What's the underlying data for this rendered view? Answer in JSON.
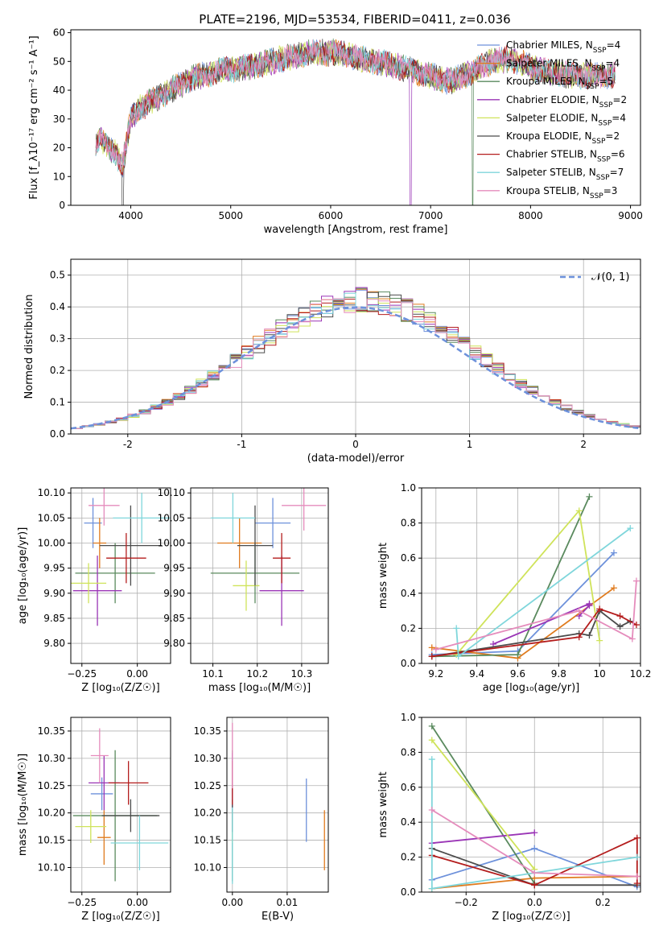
{
  "figure_title": "PLATE=2196, MJD=53534, FIBERID=0411, z=0.036",
  "colors": [
    "#6d91db",
    "#e07b1e",
    "#5a8a5e",
    "#9a35b6",
    "#cfe35a",
    "#4b4b4b",
    "#b41d1d",
    "#7fd6db",
    "#e58cbc"
  ],
  "chart_data": [
    {
      "id": "spectrum",
      "type": "line",
      "xlabel": "wavelength [Angstrom, rest frame]",
      "ylabel": "Flux [f_λ10⁻¹⁷ erg cm⁻² s⁻¹ A⁻¹]",
      "xlim": [
        3400,
        9100
      ],
      "ylim": [
        0,
        61
      ],
      "xticks": [
        4000,
        5000,
        6000,
        7000,
        8000,
        9000
      ],
      "yticks": [
        0,
        10,
        20,
        30,
        40,
        50,
        60
      ],
      "grid": false,
      "legend": "upper-right",
      "continuum_x": [
        3650,
        3700,
        3850,
        3920,
        3950,
        4000,
        4100,
        4300,
        4600,
        4900,
        5200,
        5400,
        5800,
        6100,
        6300,
        6600,
        6900,
        7200,
        7400,
        7600,
        7800,
        8000,
        8200,
        8500,
        8850
      ],
      "continuum_y": [
        22,
        23,
        18,
        14,
        20,
        30,
        34,
        38,
        44,
        47,
        48,
        50,
        53,
        53,
        51,
        49,
        46,
        43,
        46,
        50,
        51,
        48,
        46,
        45,
        45
      ],
      "series": [
        {
          "name": "Chabrier MILES, N_SSP=4",
          "label_main": "Chabrier MILES, N",
          "label_sub": "SSP",
          "label_end": "=4",
          "dip": null
        },
        {
          "name": "Salpeter MILES, N_SSP=4",
          "label_main": "Salpeter MILES, N",
          "label_sub": "SSP",
          "label_end": "=4",
          "dip": null
        },
        {
          "name": "Kroupa MILES, N_SSP=5",
          "label_main": "Kroupa MILES, N",
          "label_sub": "SSP",
          "label_end": "=5",
          "dip": 7420
        },
        {
          "name": "Chabrier ELODIE, N_SSP=2",
          "label_main": "Chabrier ELODIE, N",
          "label_sub": "SSP",
          "label_end": "=2",
          "dip": 6800
        },
        {
          "name": "Salpeter ELODIE, N_SSP=4",
          "label_main": "Salpeter ELODIE, N",
          "label_sub": "SSP",
          "label_end": "=4",
          "dip": null
        },
        {
          "name": "Kroupa ELODIE, N_SSP=2",
          "label_main": "Kroupa ELODIE, N",
          "label_sub": "SSP",
          "label_end": "=2",
          "dip": 3920
        },
        {
          "name": "Chabrier STELIB, N_SSP=6",
          "label_main": "Chabrier STELIB, N",
          "label_sub": "SSP",
          "label_end": "=6",
          "dip": null
        },
        {
          "name": "Salpeter STELIB, N_SSP=7",
          "label_main": "Salpeter STELIB, N",
          "label_sub": "SSP",
          "label_end": "=7",
          "dip": null
        },
        {
          "name": "Kroupa STELIB, N_SSP=3",
          "label_main": "Kroupa STELIB, N",
          "label_sub": "SSP",
          "label_end": "=3",
          "dip": null
        }
      ]
    },
    {
      "id": "residuals",
      "type": "histogram",
      "xlabel": "(data-model)/error",
      "ylabel": "Normed distribution",
      "xlim": [
        -2.5,
        2.5
      ],
      "ylim": [
        0,
        0.55
      ],
      "xticks": [
        -2,
        -1,
        0,
        1,
        2
      ],
      "yticks": [
        0.0,
        0.1,
        0.2,
        0.3,
        0.4,
        0.5
      ],
      "grid": true,
      "legend": "upper-right",
      "normal_label": "𝒩(0, 1)",
      "bin_width": 0.1,
      "hist_note": "per-series step histograms approximate the N(0,1) curve"
    },
    {
      "id": "age-vs-Z",
      "type": "errorbar",
      "xlabel": "Z [log₁₀(Z/Z☉)]",
      "ylabel": "age  [log₁₀(age/yr)]",
      "xlim": [
        -0.3,
        0.15
      ],
      "ylim": [
        9.76,
        10.11
      ],
      "xticks": [
        -0.25,
        0.0
      ],
      "xtick_labels": [
        "−0.25",
        "0.00"
      ],
      "yticks": [
        9.8,
        9.85,
        9.9,
        9.95,
        10.0,
        10.05,
        10.1
      ],
      "grid": true,
      "points": [
        {
          "x": -0.2,
          "y": 10.04,
          "xerr": 0.04,
          "yerr": 0.05,
          "c": 0
        },
        {
          "x": -0.17,
          "y": 10.0,
          "xerr": 0.03,
          "yerr": 0.05,
          "c": 1
        },
        {
          "x": -0.1,
          "y": 9.94,
          "xerr": 0.18,
          "yerr": 0.06,
          "c": 2
        },
        {
          "x": -0.18,
          "y": 9.905,
          "xerr": 0.11,
          "yerr": 0.07,
          "c": 3
        },
        {
          "x": -0.22,
          "y": 9.92,
          "xerr": 0.08,
          "yerr": 0.04,
          "c": 4
        },
        {
          "x": -0.03,
          "y": 9.995,
          "xerr": 0.14,
          "yerr": 0.08,
          "c": 5
        },
        {
          "x": -0.05,
          "y": 9.97,
          "xerr": 0.09,
          "yerr": 0.05,
          "c": 6
        },
        {
          "x": 0.02,
          "y": 10.05,
          "xerr": 0.13,
          "yerr": 0.05,
          "c": 7
        },
        {
          "x": -0.15,
          "y": 10.075,
          "xerr": 0.07,
          "yerr": 0.04,
          "c": 8
        }
      ]
    },
    {
      "id": "age-vs-mass",
      "type": "errorbar",
      "xlabel": "mass [log₁₀(M/M☉)]",
      "ylabel": "",
      "xlim": [
        10.05,
        10.36
      ],
      "ylim": [
        9.76,
        10.11
      ],
      "xticks": [
        10.1,
        10.2,
        10.3
      ],
      "yticks": [
        9.8,
        9.85,
        9.9,
        9.95,
        10.0,
        10.05,
        10.1
      ],
      "grid": true,
      "points": [
        {
          "x": 10.235,
          "y": 10.04,
          "xerr": 0.04,
          "yerr": 0.05,
          "c": 0
        },
        {
          "x": 10.16,
          "y": 10.0,
          "xerr": 0.05,
          "yerr": 0.05,
          "c": 1
        },
        {
          "x": 10.195,
          "y": 9.94,
          "xerr": 0.1,
          "yerr": 0.06,
          "c": 2
        },
        {
          "x": 10.255,
          "y": 9.905,
          "xerr": 0.05,
          "yerr": 0.07,
          "c": 3
        },
        {
          "x": 10.175,
          "y": 9.915,
          "xerr": 0.03,
          "yerr": 0.05,
          "c": 4
        },
        {
          "x": 10.195,
          "y": 9.995,
          "xerr": 0.04,
          "yerr": 0.08,
          "c": 5
        },
        {
          "x": 10.255,
          "y": 9.97,
          "xerr": 0.02,
          "yerr": 0.05,
          "c": 6
        },
        {
          "x": 10.145,
          "y": 10.05,
          "xerr": 0.05,
          "yerr": 0.05,
          "c": 7
        },
        {
          "x": 10.305,
          "y": 10.075,
          "xerr": 0.05,
          "yerr": 0.05,
          "c": 8
        }
      ]
    },
    {
      "id": "weight-vs-age",
      "type": "line",
      "xlabel": "age  [log₁₀(age/yr)]",
      "ylabel": "mass weight",
      "xlim": [
        9.13,
        10.2
      ],
      "ylim": [
        0,
        1.0
      ],
      "xticks": [
        9.2,
        9.4,
        9.6,
        9.8,
        10.0,
        10.2
      ],
      "yticks": [
        0.0,
        0.2,
        0.4,
        0.6,
        0.8,
        1.0
      ],
      "grid": true,
      "series": [
        {
          "c": 0,
          "x": [
            9.18,
            9.6,
            10.07
          ],
          "y": [
            0.05,
            0.07,
            0.63
          ]
        },
        {
          "c": 1,
          "x": [
            9.18,
            9.6,
            10.07
          ],
          "y": [
            0.09,
            0.03,
            0.43
          ]
        },
        {
          "c": 2,
          "x": [
            9.18,
            9.6,
            9.95
          ],
          "y": [
            0.04,
            0.05,
            0.95
          ]
        },
        {
          "c": 3,
          "x": [
            9.48,
            9.95,
            9.95,
            9.9
          ],
          "y": [
            0.11,
            0.34,
            0.33,
            0.27
          ]
        },
        {
          "c": 4,
          "x": [
            9.3,
            9.9,
            10.0
          ],
          "y": [
            0.05,
            0.87,
            0.13
          ]
        },
        {
          "c": 5,
          "x": [
            9.18,
            9.9,
            9.95,
            10.0,
            10.1,
            10.15
          ],
          "y": [
            0.04,
            0.17,
            0.16,
            0.3,
            0.21,
            0.24
          ]
        },
        {
          "c": 6,
          "x": [
            9.18,
            9.9,
            10.0,
            10.1,
            10.18
          ],
          "y": [
            0.04,
            0.15,
            0.31,
            0.27,
            0.22
          ]
        },
        {
          "c": 7,
          "x": [
            9.3,
            9.31,
            10.15
          ],
          "y": [
            0.2,
            0.04,
            0.77
          ]
        },
        {
          "c": 8,
          "x": [
            9.2,
            9.9,
            10.16,
            10.18
          ],
          "y": [
            0.08,
            0.3,
            0.14,
            0.47
          ]
        }
      ]
    },
    {
      "id": "mass-vs-Z",
      "type": "errorbar",
      "xlabel": "Z [log₁₀(Z/Z☉)]",
      "ylabel": "mass [log₁₀(M/M☉)]",
      "xlim": [
        -0.3,
        0.15
      ],
      "ylim": [
        10.055,
        10.375
      ],
      "xticks": [
        -0.25,
        0.0
      ],
      "xtick_labels": [
        "−0.25",
        "0.00"
      ],
      "yticks": [
        10.1,
        10.15,
        10.2,
        10.25,
        10.3,
        10.35
      ],
      "grid": true,
      "points": [
        {
          "x": -0.16,
          "y": 10.235,
          "xerr": 0.05,
          "yerr": 0.03,
          "c": 0
        },
        {
          "x": -0.15,
          "y": 10.155,
          "xerr": 0.03,
          "yerr": 0.05,
          "c": 1
        },
        {
          "x": -0.1,
          "y": 10.195,
          "xerr": 0.19,
          "yerr": 0.12,
          "c": 2
        },
        {
          "x": -0.15,
          "y": 10.255,
          "xerr": 0.07,
          "yerr": 0.05,
          "c": 3
        },
        {
          "x": -0.21,
          "y": 10.175,
          "xerr": 0.07,
          "yerr": 0.03,
          "c": 4
        },
        {
          "x": -0.03,
          "y": 10.195,
          "xerr": 0.13,
          "yerr": 0.03,
          "c": 5
        },
        {
          "x": -0.04,
          "y": 10.255,
          "xerr": 0.09,
          "yerr": 0.04,
          "c": 6
        },
        {
          "x": 0.01,
          "y": 10.145,
          "xerr": 0.13,
          "yerr": 0.05,
          "c": 7
        },
        {
          "x": -0.17,
          "y": 10.305,
          "xerr": 0.04,
          "yerr": 0.05,
          "c": 8
        }
      ]
    },
    {
      "id": "mass-vs-EBV",
      "type": "errorbar",
      "xlabel": "E(B-V)",
      "ylabel": "",
      "xlim": [
        -0.001,
        0.0175
      ],
      "ylim": [
        10.055,
        10.375
      ],
      "xticks": [
        0.0,
        0.01
      ],
      "xtick_labels": [
        "0.00",
        "0.01"
      ],
      "yticks": [
        10.1,
        10.15,
        10.2,
        10.25,
        10.3,
        10.35
      ],
      "grid": true,
      "points": [
        {
          "x": 0.0135,
          "y": 10.205,
          "xerr": 0,
          "yerr": 0.058,
          "c": 0
        },
        {
          "x": 0.0168,
          "y": 10.15,
          "xerr": 0,
          "yerr": 0.055,
          "c": 1
        },
        {
          "x": 0.0,
          "y": 10.195,
          "xerr": 0,
          "yerr": 0.12,
          "c": 2
        },
        {
          "x": 0.0,
          "y": 10.255,
          "xerr": 0,
          "yerr": 0.055,
          "c": 3
        },
        {
          "x": 0.0,
          "y": 10.175,
          "xerr": 0,
          "yerr": 0.03,
          "c": 4
        },
        {
          "x": 0.0,
          "y": 10.195,
          "xerr": 0,
          "yerr": 0.03,
          "c": 5
        },
        {
          "x": 0.0,
          "y": 10.255,
          "xerr": 0,
          "yerr": 0.04,
          "c": 6
        },
        {
          "x": 0.0,
          "y": 10.14,
          "xerr": 0,
          "yerr": 0.07,
          "c": 7
        },
        {
          "x": 0.0,
          "y": 10.305,
          "xerr": 0,
          "yerr": 0.06,
          "c": 8
        }
      ]
    },
    {
      "id": "weight-vs-Z",
      "type": "line",
      "xlabel": "Z [log₁₀(Z/Z☉)]",
      "ylabel": "mass weight",
      "xlim": [
        -0.33,
        0.31
      ],
      "ylim": [
        0,
        1.0
      ],
      "xticks": [
        -0.2,
        0.0,
        0.2
      ],
      "xtick_labels": [
        "−0.2",
        "0.0",
        "0.2"
      ],
      "yticks": [
        0.0,
        0.2,
        0.4,
        0.6,
        0.8,
        1.0
      ],
      "grid": true,
      "series": [
        {
          "c": 0,
          "x": [
            -0.3,
            0.0,
            0.3
          ],
          "y": [
            0.07,
            0.25,
            0.03
          ]
        },
        {
          "c": 1,
          "x": [
            -0.3,
            0.0,
            0.3
          ],
          "y": [
            0.02,
            0.08,
            0.09
          ]
        },
        {
          "c": 2,
          "x": [
            -0.3,
            0.0
          ],
          "y": [
            0.95,
            0.05
          ]
        },
        {
          "c": 3,
          "x": [
            -0.3,
            0.0
          ],
          "y": [
            0.28,
            0.34
          ]
        },
        {
          "c": 4,
          "x": [
            -0.3,
            0.0
          ],
          "y": [
            0.87,
            0.13
          ]
        },
        {
          "c": 5,
          "x": [
            -0.3,
            0.0,
            0.3
          ],
          "y": [
            0.25,
            0.04,
            0.04
          ]
        },
        {
          "c": 6,
          "x": [
            -0.3,
            0.0,
            0.3,
            0.3
          ],
          "y": [
            0.21,
            0.04,
            0.31,
            0.05
          ]
        },
        {
          "c": 7,
          "x": [
            -0.3,
            -0.3,
            0.0,
            0.3
          ],
          "y": [
            0.76,
            0.02,
            0.11,
            0.2
          ]
        },
        {
          "c": 8,
          "x": [
            -0.3,
            0.0,
            0.3
          ],
          "y": [
            0.47,
            0.11,
            0.09
          ]
        }
      ]
    }
  ]
}
